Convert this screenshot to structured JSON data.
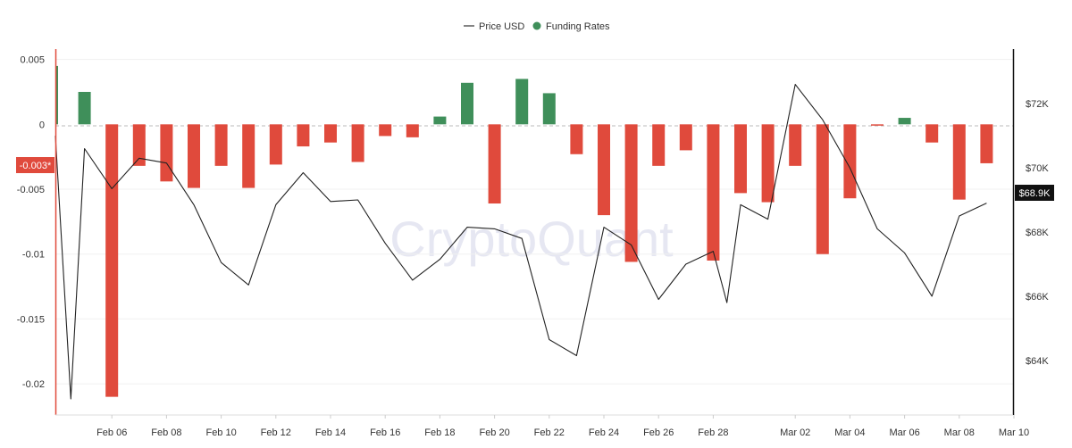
{
  "chart_data": {
    "type": "bar+line",
    "watermark": "CryptoQuant",
    "legend": {
      "placement": "top-center",
      "items": [
        {
          "label": "Price USD",
          "marker": "line",
          "color": "#333333"
        },
        {
          "label": "Funding Rates",
          "marker": "dot",
          "color": "#3f8f5a"
        }
      ]
    },
    "colors": {
      "positive": "#3f8f5a",
      "negative": "#e04a3c",
      "price_line": "#222222",
      "zero_line": "#bbbbbb",
      "grid": "#f0f0f0",
      "cursor": "#e04a3c"
    },
    "x": {
      "start": "2024-02-04",
      "tick_labels": [
        "Feb 06",
        "Feb 08",
        "Feb 10",
        "Feb 12",
        "Feb 14",
        "Feb 16",
        "Feb 18",
        "Feb 20",
        "Feb 22",
        "Feb 24",
        "Feb 26",
        "Feb 28",
        "Mar 02",
        "Mar 04",
        "Mar 06",
        "Mar 08",
        "Mar 10"
      ],
      "tick_dates": [
        "2024-02-06",
        "2024-02-08",
        "2024-02-10",
        "2024-02-12",
        "2024-02-14",
        "2024-02-16",
        "2024-02-18",
        "2024-02-20",
        "2024-02-22",
        "2024-02-24",
        "2024-02-26",
        "2024-02-28",
        "2024-03-02",
        "2024-03-04",
        "2024-03-06",
        "2024-03-08",
        "2024-03-10"
      ]
    },
    "y_left": {
      "label": "",
      "range": [
        -0.0224,
        0.0058
      ],
      "ticks": [
        0.005,
        0,
        -0.005,
        -0.01,
        -0.015,
        -0.02
      ],
      "tick_labels": [
        "0.005",
        "0",
        "-0.005",
        "-0.01",
        "-0.015",
        "-0.02"
      ]
    },
    "y_right": {
      "label": "",
      "range": [
        62300,
        73700
      ],
      "ticks": [
        72000,
        70000,
        68000,
        66000,
        64000
      ],
      "tick_labels": [
        "$72K",
        "$70K",
        "$68K",
        "$66K",
        "$64K"
      ]
    },
    "cursor_label": "-0.003*",
    "last_price_label": "$68.9K",
    "series": [
      {
        "name": "Funding Rates",
        "kind": "bar",
        "axis": "left",
        "points": [
          {
            "date": "2024-02-04",
            "value": 0.0045
          },
          {
            "date": "2024-02-05",
            "value": 0.0025
          },
          {
            "date": "2024-02-06",
            "value": -0.021
          },
          {
            "date": "2024-02-07",
            "value": -0.0032
          },
          {
            "date": "2024-02-08",
            "value": -0.0044
          },
          {
            "date": "2024-02-09",
            "value": -0.0049
          },
          {
            "date": "2024-02-10",
            "value": -0.0032
          },
          {
            "date": "2024-02-11",
            "value": -0.0049
          },
          {
            "date": "2024-02-12",
            "value": -0.0031
          },
          {
            "date": "2024-02-13",
            "value": -0.0017
          },
          {
            "date": "2024-02-14",
            "value": -0.0014
          },
          {
            "date": "2024-02-15",
            "value": -0.0029
          },
          {
            "date": "2024-02-16",
            "value": -0.0009
          },
          {
            "date": "2024-02-17",
            "value": -0.001
          },
          {
            "date": "2024-02-18",
            "value": 0.0006
          },
          {
            "date": "2024-02-19",
            "value": 0.0032
          },
          {
            "date": "2024-02-20",
            "value": -0.0061
          },
          {
            "date": "2024-02-21",
            "value": 0.0035
          },
          {
            "date": "2024-02-22",
            "value": 0.0024
          },
          {
            "date": "2024-02-23",
            "value": -0.0023
          },
          {
            "date": "2024-02-24",
            "value": -0.007
          },
          {
            "date": "2024-02-25",
            "value": -0.0106
          },
          {
            "date": "2024-02-26",
            "value": -0.0032
          },
          {
            "date": "2024-02-27",
            "value": -0.002
          },
          {
            "date": "2024-02-28",
            "value": -0.0105
          },
          {
            "date": "2024-02-29",
            "value": -0.0053
          },
          {
            "date": "2024-03-01",
            "value": -0.006
          },
          {
            "date": "2024-03-02",
            "value": -0.0032
          },
          {
            "date": "2024-03-03",
            "value": -0.01
          },
          {
            "date": "2024-03-04",
            "value": -0.0057
          },
          {
            "date": "2024-03-05",
            "value": -0.0001
          },
          {
            "date": "2024-03-06",
            "value": 0.0005
          },
          {
            "date": "2024-03-07",
            "value": -0.0014
          },
          {
            "date": "2024-03-08",
            "value": -0.0058
          },
          {
            "date": "2024-03-09",
            "value": -0.003
          }
        ]
      },
      {
        "name": "Price USD",
        "kind": "line",
        "axis": "right",
        "points": [
          {
            "date": "2024-02-04",
            "value": 71000
          },
          {
            "date": "2024-02-04T12:00",
            "value": 62800
          },
          {
            "date": "2024-02-05",
            "value": 70600
          },
          {
            "date": "2024-02-06",
            "value": 69350
          },
          {
            "date": "2024-02-07",
            "value": 70300
          },
          {
            "date": "2024-02-08",
            "value": 70150
          },
          {
            "date": "2024-02-09",
            "value": 68850
          },
          {
            "date": "2024-02-10",
            "value": 67050
          },
          {
            "date": "2024-02-11",
            "value": 66350
          },
          {
            "date": "2024-02-12",
            "value": 68850
          },
          {
            "date": "2024-02-13",
            "value": 69850
          },
          {
            "date": "2024-02-14",
            "value": 68950
          },
          {
            "date": "2024-02-15",
            "value": 69000
          },
          {
            "date": "2024-02-16",
            "value": 67650
          },
          {
            "date": "2024-02-17",
            "value": 66500
          },
          {
            "date": "2024-02-18",
            "value": 67150
          },
          {
            "date": "2024-02-19",
            "value": 68150
          },
          {
            "date": "2024-02-20",
            "value": 68100
          },
          {
            "date": "2024-02-21",
            "value": 67800
          },
          {
            "date": "2024-02-22",
            "value": 64650
          },
          {
            "date": "2024-02-23",
            "value": 64150
          },
          {
            "date": "2024-02-24",
            "value": 68150
          },
          {
            "date": "2024-02-25",
            "value": 67600
          },
          {
            "date": "2024-02-26",
            "value": 65900
          },
          {
            "date": "2024-02-27",
            "value": 67000
          },
          {
            "date": "2024-02-28",
            "value": 67400
          },
          {
            "date": "2024-02-28T12:00",
            "value": 65800
          },
          {
            "date": "2024-02-29",
            "value": 68850
          },
          {
            "date": "2024-03-01",
            "value": 68400
          },
          {
            "date": "2024-03-02",
            "value": 72600
          },
          {
            "date": "2024-03-03",
            "value": 71500
          },
          {
            "date": "2024-03-04",
            "value": 70000
          },
          {
            "date": "2024-03-05",
            "value": 68100
          },
          {
            "date": "2024-03-06",
            "value": 67350
          },
          {
            "date": "2024-03-07",
            "value": 66000
          },
          {
            "date": "2024-03-08",
            "value": 68500
          },
          {
            "date": "2024-03-09",
            "value": 68900
          }
        ]
      }
    ]
  }
}
